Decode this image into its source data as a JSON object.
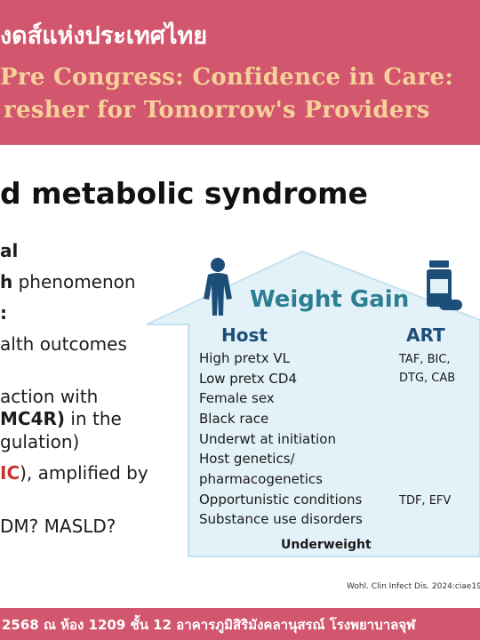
{
  "header": {
    "org_title": "งดส์แห่งประเทศไทย",
    "congress_line1": "Pre Congress: Confidence in Care:",
    "congress_line2": "resher for Tomorrow's Providers"
  },
  "slide": {
    "title": "d metabolic syndrome",
    "lines": [
      {
        "pre": "",
        "bold": "al",
        "post": ""
      },
      {
        "pre": "",
        "bold": "h",
        "post": " phenomenon"
      },
      {
        "pre": "",
        "bold": ":",
        "post": ""
      },
      {
        "pre": "alth outcomes",
        "bold": "",
        "post": ""
      },
      {
        "pre": "action with",
        "bold": "",
        "post": ""
      },
      {
        "pre": "",
        "bold": "MC4R)",
        "post": " in the"
      },
      {
        "pre": "gulation)",
        "bold": "",
        "post": ""
      },
      {
        "pre": "",
        "accent": "IC",
        "post": "), amplified by"
      },
      {
        "pre": " DM? MASLD?",
        "bold": "",
        "post": ""
      }
    ]
  },
  "figure": {
    "title": "Weight Gain",
    "host_heading": "Host",
    "art_heading": "ART",
    "host_items": [
      "High pretx VL",
      "Low pretx CD4",
      "Female sex",
      "Black race",
      "Underwt at initiation",
      "Host genetics/",
      "pharmacogenetics",
      "Opportunistic conditions",
      "Substance use disorders"
    ],
    "art_items": [
      "TAF, BIC,",
      "DTG, CAB",
      "TDF, EFV"
    ],
    "bottom_label": "Underweight",
    "person_icon": "person-icon",
    "medication_icon": "medication-bottle-icon",
    "colors": {
      "house_fill": "#e3f2f8",
      "house_border": "#c3e2ee",
      "title": "#2c7e92",
      "headings": "#1d4e79",
      "icons": "#1d4e79"
    }
  },
  "citation": "Wohl. Clin Infect Dis. 2024:ciae19",
  "footer": {
    "text": " 2568 ณ ห้อง 1209 ชั้น 12 อาคารภูมิสิริมังคลานุสรณ์ โรงพยาบาลจุฬ"
  },
  "theme": {
    "header_bg": "#d2566e",
    "header_title_color": "#ffffff",
    "congress_text_color": "#f6d29a",
    "accent_text": "#c8322f"
  }
}
